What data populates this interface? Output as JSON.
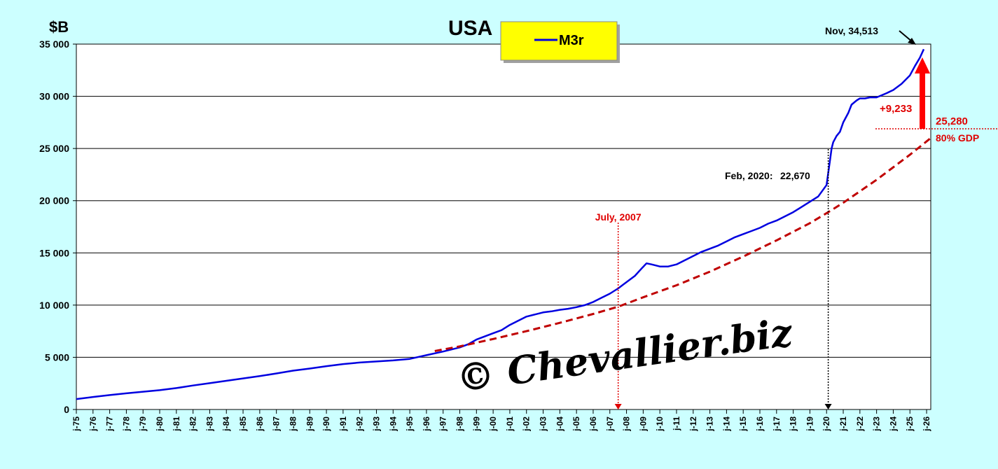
{
  "chart_data": {
    "type": "line",
    "title": "USA",
    "ylabel": "$B",
    "ylim": [
      0,
      35000
    ],
    "yticks": [
      0,
      5000,
      10000,
      15000,
      20000,
      25000,
      30000,
      35000
    ],
    "ytick_labels": [
      "0",
      "5 000",
      "10 000",
      "15 000",
      "20 000",
      "25 000",
      "30 000",
      "35 000"
    ],
    "xlim": [
      1975.0,
      2026.25
    ],
    "xtick_labels": [
      "j-75",
      "j-76",
      "j-77",
      "j-78",
      "j-79",
      "j-80",
      "j-81",
      "j-82",
      "j-83",
      "j-84",
      "j-85",
      "j-86",
      "j-87",
      "j-88",
      "j-89",
      "j-90",
      "j-91",
      "j-92",
      "j-93",
      "j-94",
      "j-95",
      "j-96",
      "j-97",
      "j-98",
      "j-99",
      "j-00",
      "j-01",
      "j-02",
      "j-03",
      "j-04",
      "j-05",
      "j-06",
      "j-07",
      "j-08",
      "j-09",
      "j-10",
      "j-11",
      "j-12",
      "j-13",
      "j-14",
      "j-15",
      "j-16",
      "j-17",
      "j-18",
      "j-19",
      "j-20",
      "j-21",
      "j-22",
      "j-23",
      "j-24",
      "j-25",
      "j-26"
    ],
    "grid": true,
    "legend_position": "top-center",
    "series": [
      {
        "name": "M3r",
        "color": "#0000e0",
        "style": "solid",
        "x": [
          1975.0,
          1976.0,
          1977.0,
          1978.0,
          1979.0,
          1980.0,
          1981.0,
          1982.0,
          1983.0,
          1984.0,
          1985.0,
          1986.0,
          1987.0,
          1988.0,
          1989.0,
          1990.0,
          1991.0,
          1992.0,
          1993.0,
          1994.0,
          1995.0,
          1996.0,
          1997.0,
          1998.0,
          1998.5,
          1999.0,
          1999.5,
          2000.0,
          2000.5,
          2001.0,
          2001.5,
          2002.0,
          2002.5,
          2003.0,
          2003.5,
          2004.0,
          2004.5,
          2005.0,
          2005.5,
          2006.0,
          2006.5,
          2007.0,
          2007.5,
          2008.0,
          2008.5,
          2008.9,
          2009.2,
          2009.5,
          2010.0,
          2010.5,
          2011.0,
          2011.5,
          2012.0,
          2012.5,
          2013.0,
          2013.5,
          2014.0,
          2014.5,
          2015.0,
          2015.5,
          2016.0,
          2016.5,
          2017.0,
          2017.5,
          2018.0,
          2018.5,
          2019.0,
          2019.5,
          2020.0,
          2020.1,
          2020.2,
          2020.3,
          2020.4,
          2020.6,
          2020.8,
          2021.0,
          2021.3,
          2021.5,
          2021.8,
          2022.0,
          2022.3,
          2022.6,
          2023.0,
          2023.3,
          2023.6,
          2024.0,
          2024.5,
          2025.0,
          2025.3,
          2025.6,
          2025.83
        ],
        "y": [
          1000,
          1200,
          1380,
          1550,
          1700,
          1850,
          2050,
          2300,
          2520,
          2750,
          2980,
          3200,
          3450,
          3720,
          3920,
          4150,
          4350,
          4500,
          4600,
          4700,
          4850,
          5200,
          5550,
          5950,
          6250,
          6700,
          7000,
          7300,
          7600,
          8100,
          8500,
          8900,
          9100,
          9300,
          9400,
          9550,
          9650,
          9800,
          10000,
          10300,
          10700,
          11100,
          11600,
          12200,
          12800,
          13500,
          14000,
          13900,
          13700,
          13700,
          13900,
          14300,
          14700,
          15100,
          15400,
          15700,
          16100,
          16500,
          16800,
          17100,
          17400,
          17800,
          18100,
          18500,
          18900,
          19400,
          19900,
          20400,
          21500,
          22670,
          23800,
          25000,
          25600,
          26200,
          26600,
          27500,
          28400,
          29200,
          29600,
          29800,
          29800,
          29900,
          29900,
          30100,
          30300,
          30600,
          31200,
          32000,
          32900,
          33700,
          34513
        ]
      },
      {
        "name": "80% GDP",
        "color": "#c00000",
        "style": "dashed",
        "x": [
          1996.5,
          1998,
          2000,
          2002,
          2004,
          2006,
          2007.5,
          2009,
          2011,
          2013,
          2015,
          2017,
          2019,
          2020,
          2021,
          2022,
          2023,
          2024,
          2025,
          2026.25
        ],
        "y": [
          5600,
          6050,
          6750,
          7500,
          8300,
          9150,
          9850,
          10750,
          11900,
          13200,
          14650,
          16200,
          17850,
          18800,
          19800,
          20900,
          22000,
          23200,
          24400,
          26000
        ]
      }
    ],
    "annotations": [
      {
        "text": "Nov, 34,513",
        "x": 2025.83,
        "y": 34513
      },
      {
        "text": "Feb, 2020:",
        "x": 2020.1,
        "y": 22670
      },
      {
        "text": "22,670",
        "x": 2020.1,
        "y": 22670
      },
      {
        "text": "July, 2007",
        "x": 2007.5,
        "y": 0
      },
      {
        "text": "+9,233"
      },
      {
        "text": "25,280"
      },
      {
        "text": "80% GDP"
      }
    ],
    "watermark": "© Chevallier.biz"
  },
  "legend_entry": "M3r"
}
